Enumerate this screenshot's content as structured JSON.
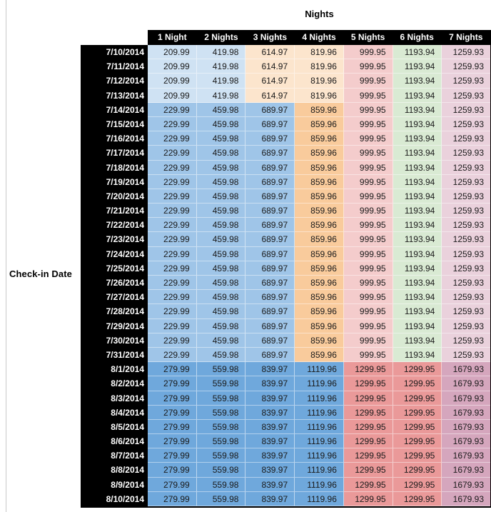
{
  "chart_data": {
    "type": "table",
    "title": "Nights",
    "row_axis_label": "Check-in Date",
    "columns": [
      "1 Night",
      "2 Nights",
      "3 Nights",
      "4 Nights",
      "5 Nights",
      "6 Nights",
      "7 Nights"
    ],
    "header_bg": "#000000",
    "header_text_color": "#ffffff",
    "palette": {
      "blue_light": "#CFE2F3",
      "blue_mid": "#9FC5E8",
      "blue_dark": "#6FA8DC",
      "orange_light": "#FCE5CD",
      "orange_mid": "#F9CB9C",
      "red_light": "#F4CCCC",
      "red_mid": "#EA9999",
      "green_light": "#D9EAD3",
      "magenta_light": "#EAD1DC",
      "magenta_mid": "#D5A6BD"
    },
    "rows": [
      {
        "date": "7/10/2014",
        "values": [
          "209.99",
          "419.98",
          "614.97",
          "819.96",
          "999.95",
          "1193.94",
          "1259.93"
        ],
        "cell_colors": [
          "blue_light",
          "blue_light",
          "orange_light",
          "orange_light",
          "red_light",
          "green_light",
          "magenta_light"
        ]
      },
      {
        "date": "7/11/2014",
        "values": [
          "209.99",
          "419.98",
          "614.97",
          "819.96",
          "999.95",
          "1193.94",
          "1259.93"
        ],
        "cell_colors": [
          "blue_light",
          "blue_light",
          "orange_light",
          "orange_light",
          "red_light",
          "green_light",
          "magenta_light"
        ]
      },
      {
        "date": "7/12/2014",
        "values": [
          "209.99",
          "419.98",
          "614.97",
          "819.96",
          "999.95",
          "1193.94",
          "1259.93"
        ],
        "cell_colors": [
          "blue_light",
          "blue_light",
          "orange_light",
          "orange_light",
          "red_light",
          "green_light",
          "magenta_light"
        ]
      },
      {
        "date": "7/13/2014",
        "values": [
          "209.99",
          "419.98",
          "614.97",
          "819.96",
          "999.95",
          "1193.94",
          "1259.93"
        ],
        "cell_colors": [
          "blue_light",
          "blue_light",
          "orange_light",
          "orange_light",
          "red_light",
          "green_light",
          "magenta_light"
        ]
      },
      {
        "date": "7/14/2014",
        "values": [
          "229.99",
          "459.98",
          "689.97",
          "859.96",
          "999.95",
          "1193.94",
          "1259.93"
        ],
        "cell_colors": [
          "blue_mid",
          "blue_mid",
          "blue_mid",
          "orange_mid",
          "red_light",
          "green_light",
          "magenta_light"
        ]
      },
      {
        "date": "7/15/2014",
        "values": [
          "229.99",
          "459.98",
          "689.97",
          "859.96",
          "999.95",
          "1193.94",
          "1259.93"
        ],
        "cell_colors": [
          "blue_mid",
          "blue_mid",
          "blue_mid",
          "orange_mid",
          "red_light",
          "green_light",
          "magenta_light"
        ]
      },
      {
        "date": "7/16/2014",
        "values": [
          "229.99",
          "459.98",
          "689.97",
          "859.96",
          "999.95",
          "1193.94",
          "1259.93"
        ],
        "cell_colors": [
          "blue_mid",
          "blue_mid",
          "blue_mid",
          "orange_mid",
          "red_light",
          "green_light",
          "magenta_light"
        ]
      },
      {
        "date": "7/17/2014",
        "values": [
          "229.99",
          "459.98",
          "689.97",
          "859.96",
          "999.95",
          "1193.94",
          "1259.93"
        ],
        "cell_colors": [
          "blue_mid",
          "blue_mid",
          "blue_mid",
          "orange_mid",
          "red_light",
          "green_light",
          "magenta_light"
        ]
      },
      {
        "date": "7/18/2014",
        "values": [
          "229.99",
          "459.98",
          "689.97",
          "859.96",
          "999.95",
          "1193.94",
          "1259.93"
        ],
        "cell_colors": [
          "blue_mid",
          "blue_mid",
          "blue_mid",
          "orange_mid",
          "red_light",
          "green_light",
          "magenta_light"
        ]
      },
      {
        "date": "7/19/2014",
        "values": [
          "229.99",
          "459.98",
          "689.97",
          "859.96",
          "999.95",
          "1193.94",
          "1259.93"
        ],
        "cell_colors": [
          "blue_mid",
          "blue_mid",
          "blue_mid",
          "orange_mid",
          "red_light",
          "green_light",
          "magenta_light"
        ]
      },
      {
        "date": "7/20/2014",
        "values": [
          "229.99",
          "459.98",
          "689.97",
          "859.96",
          "999.95",
          "1193.94",
          "1259.93"
        ],
        "cell_colors": [
          "blue_mid",
          "blue_mid",
          "blue_mid",
          "orange_mid",
          "red_light",
          "green_light",
          "magenta_light"
        ]
      },
      {
        "date": "7/21/2014",
        "values": [
          "229.99",
          "459.98",
          "689.97",
          "859.96",
          "999.95",
          "1193.94",
          "1259.93"
        ],
        "cell_colors": [
          "blue_mid",
          "blue_mid",
          "blue_mid",
          "orange_mid",
          "red_light",
          "green_light",
          "magenta_light"
        ]
      },
      {
        "date": "7/22/2014",
        "values": [
          "229.99",
          "459.98",
          "689.97",
          "859.96",
          "999.95",
          "1193.94",
          "1259.93"
        ],
        "cell_colors": [
          "blue_mid",
          "blue_mid",
          "blue_mid",
          "orange_mid",
          "red_light",
          "green_light",
          "magenta_light"
        ]
      },
      {
        "date": "7/23/2014",
        "values": [
          "229.99",
          "459.98",
          "689.97",
          "859.96",
          "999.95",
          "1193.94",
          "1259.93"
        ],
        "cell_colors": [
          "blue_mid",
          "blue_mid",
          "blue_mid",
          "orange_mid",
          "red_light",
          "green_light",
          "magenta_light"
        ]
      },
      {
        "date": "7/24/2014",
        "values": [
          "229.99",
          "459.98",
          "689.97",
          "859.96",
          "999.95",
          "1193.94",
          "1259.93"
        ],
        "cell_colors": [
          "blue_mid",
          "blue_mid",
          "blue_mid",
          "orange_mid",
          "red_light",
          "green_light",
          "magenta_light"
        ]
      },
      {
        "date": "7/25/2014",
        "values": [
          "229.99",
          "459.98",
          "689.97",
          "859.96",
          "999.95",
          "1193.94",
          "1259.93"
        ],
        "cell_colors": [
          "blue_mid",
          "blue_mid",
          "blue_mid",
          "orange_mid",
          "red_light",
          "green_light",
          "magenta_light"
        ]
      },
      {
        "date": "7/26/2014",
        "values": [
          "229.99",
          "459.98",
          "689.97",
          "859.96",
          "999.95",
          "1193.94",
          "1259.93"
        ],
        "cell_colors": [
          "blue_mid",
          "blue_mid",
          "blue_mid",
          "orange_mid",
          "red_light",
          "green_light",
          "magenta_light"
        ]
      },
      {
        "date": "7/27/2014",
        "values": [
          "229.99",
          "459.98",
          "689.97",
          "859.96",
          "999.95",
          "1193.94",
          "1259.93"
        ],
        "cell_colors": [
          "blue_mid",
          "blue_mid",
          "blue_mid",
          "orange_mid",
          "red_light",
          "green_light",
          "magenta_light"
        ]
      },
      {
        "date": "7/28/2014",
        "values": [
          "229.99",
          "459.98",
          "689.97",
          "859.96",
          "999.95",
          "1193.94",
          "1259.93"
        ],
        "cell_colors": [
          "blue_mid",
          "blue_mid",
          "blue_mid",
          "orange_mid",
          "red_light",
          "green_light",
          "magenta_light"
        ]
      },
      {
        "date": "7/29/2014",
        "values": [
          "229.99",
          "459.98",
          "689.97",
          "859.96",
          "999.95",
          "1193.94",
          "1259.93"
        ],
        "cell_colors": [
          "blue_mid",
          "blue_mid",
          "blue_mid",
          "orange_mid",
          "red_light",
          "green_light",
          "magenta_light"
        ]
      },
      {
        "date": "7/30/2014",
        "values": [
          "229.99",
          "459.98",
          "689.97",
          "859.96",
          "999.95",
          "1193.94",
          "1259.93"
        ],
        "cell_colors": [
          "blue_mid",
          "blue_mid",
          "blue_mid",
          "orange_mid",
          "red_light",
          "green_light",
          "magenta_light"
        ]
      },
      {
        "date": "7/31/2014",
        "values": [
          "229.99",
          "459.98",
          "689.97",
          "859.96",
          "999.95",
          "1193.94",
          "1259.93"
        ],
        "cell_colors": [
          "blue_mid",
          "blue_mid",
          "blue_mid",
          "orange_mid",
          "red_light",
          "green_light",
          "magenta_light"
        ]
      },
      {
        "date": "8/1/2014",
        "values": [
          "279.99",
          "559.98",
          "839.97",
          "1119.96",
          "1299.95",
          "1299.95",
          "1679.93"
        ],
        "cell_colors": [
          "blue_dark",
          "blue_dark",
          "blue_dark",
          "blue_dark",
          "red_mid",
          "red_mid",
          "magenta_mid"
        ]
      },
      {
        "date": "8/2/2014",
        "values": [
          "279.99",
          "559.98",
          "839.97",
          "1119.96",
          "1299.95",
          "1299.95",
          "1679.93"
        ],
        "cell_colors": [
          "blue_dark",
          "blue_dark",
          "blue_dark",
          "blue_dark",
          "red_mid",
          "red_mid",
          "magenta_mid"
        ]
      },
      {
        "date": "8/3/2014",
        "values": [
          "279.99",
          "559.98",
          "839.97",
          "1119.96",
          "1299.95",
          "1299.95",
          "1679.93"
        ],
        "cell_colors": [
          "blue_dark",
          "blue_dark",
          "blue_dark",
          "blue_dark",
          "red_mid",
          "red_mid",
          "magenta_mid"
        ]
      },
      {
        "date": "8/4/2014",
        "values": [
          "279.99",
          "559.98",
          "839.97",
          "1119.96",
          "1299.95",
          "1299.95",
          "1679.93"
        ],
        "cell_colors": [
          "blue_dark",
          "blue_dark",
          "blue_dark",
          "blue_dark",
          "red_mid",
          "red_mid",
          "magenta_mid"
        ]
      },
      {
        "date": "8/5/2014",
        "values": [
          "279.99",
          "559.98",
          "839.97",
          "1119.96",
          "1299.95",
          "1299.95",
          "1679.93"
        ],
        "cell_colors": [
          "blue_dark",
          "blue_dark",
          "blue_dark",
          "blue_dark",
          "red_mid",
          "red_mid",
          "magenta_mid"
        ]
      },
      {
        "date": "8/6/2014",
        "values": [
          "279.99",
          "559.98",
          "839.97",
          "1119.96",
          "1299.95",
          "1299.95",
          "1679.93"
        ],
        "cell_colors": [
          "blue_dark",
          "blue_dark",
          "blue_dark",
          "blue_dark",
          "red_mid",
          "red_mid",
          "magenta_mid"
        ]
      },
      {
        "date": "8/7/2014",
        "values": [
          "279.99",
          "559.98",
          "839.97",
          "1119.96",
          "1299.95",
          "1299.95",
          "1679.93"
        ],
        "cell_colors": [
          "blue_dark",
          "blue_dark",
          "blue_dark",
          "blue_dark",
          "red_mid",
          "red_mid",
          "magenta_mid"
        ]
      },
      {
        "date": "8/8/2014",
        "values": [
          "279.99",
          "559.98",
          "839.97",
          "1119.96",
          "1299.95",
          "1299.95",
          "1679.93"
        ],
        "cell_colors": [
          "blue_dark",
          "blue_dark",
          "blue_dark",
          "blue_dark",
          "red_mid",
          "red_mid",
          "magenta_mid"
        ]
      },
      {
        "date": "8/9/2014",
        "values": [
          "279.99",
          "559.98",
          "839.97",
          "1119.96",
          "1299.95",
          "1299.95",
          "1679.93"
        ],
        "cell_colors": [
          "blue_dark",
          "blue_dark",
          "blue_dark",
          "blue_dark",
          "red_mid",
          "red_mid",
          "magenta_mid"
        ]
      },
      {
        "date": "8/10/2014",
        "values": [
          "279.99",
          "559.98",
          "839.97",
          "1119.96",
          "1299.95",
          "1299.95",
          "1679.93"
        ],
        "cell_colors": [
          "blue_dark",
          "blue_dark",
          "blue_dark",
          "blue_dark",
          "red_mid",
          "red_mid",
          "magenta_mid"
        ]
      }
    ]
  }
}
